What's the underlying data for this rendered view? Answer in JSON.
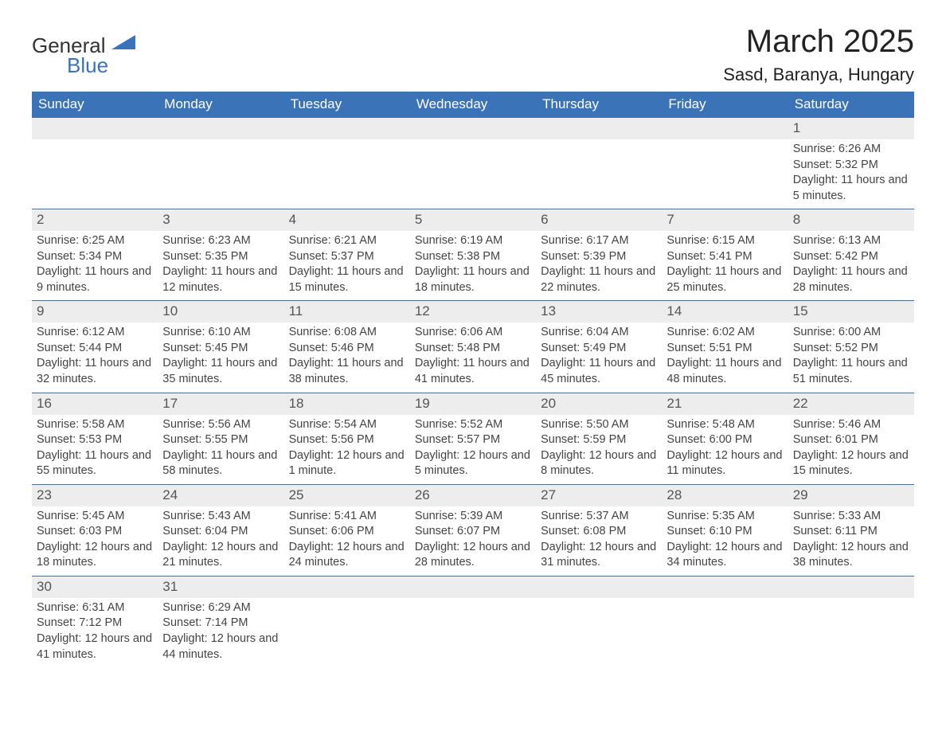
{
  "brand": {
    "text1": "General",
    "text2": "Blue",
    "color": "#3b73b9"
  },
  "title": "March 2025",
  "location": "Sasd, Baranya, Hungary",
  "weekdays": [
    "Sunday",
    "Monday",
    "Tuesday",
    "Wednesday",
    "Thursday",
    "Friday",
    "Saturday"
  ],
  "header_bg": "#3b73b9",
  "header_fg": "#ffffff",
  "band_bg": "#ededed",
  "row_border": "#3b73b9",
  "text_color": "#444444",
  "days": [
    {
      "n": 1,
      "col": 6,
      "sunrise": "6:26 AM",
      "sunset": "5:32 PM",
      "daylight": "11 hours and 5 minutes."
    },
    {
      "n": 2,
      "col": 0,
      "sunrise": "6:25 AM",
      "sunset": "5:34 PM",
      "daylight": "11 hours and 9 minutes."
    },
    {
      "n": 3,
      "col": 1,
      "sunrise": "6:23 AM",
      "sunset": "5:35 PM",
      "daylight": "11 hours and 12 minutes."
    },
    {
      "n": 4,
      "col": 2,
      "sunrise": "6:21 AM",
      "sunset": "5:37 PM",
      "daylight": "11 hours and 15 minutes."
    },
    {
      "n": 5,
      "col": 3,
      "sunrise": "6:19 AM",
      "sunset": "5:38 PM",
      "daylight": "11 hours and 18 minutes."
    },
    {
      "n": 6,
      "col": 4,
      "sunrise": "6:17 AM",
      "sunset": "5:39 PM",
      "daylight": "11 hours and 22 minutes."
    },
    {
      "n": 7,
      "col": 5,
      "sunrise": "6:15 AM",
      "sunset": "5:41 PM",
      "daylight": "11 hours and 25 minutes."
    },
    {
      "n": 8,
      "col": 6,
      "sunrise": "6:13 AM",
      "sunset": "5:42 PM",
      "daylight": "11 hours and 28 minutes."
    },
    {
      "n": 9,
      "col": 0,
      "sunrise": "6:12 AM",
      "sunset": "5:44 PM",
      "daylight": "11 hours and 32 minutes."
    },
    {
      "n": 10,
      "col": 1,
      "sunrise": "6:10 AM",
      "sunset": "5:45 PM",
      "daylight": "11 hours and 35 minutes."
    },
    {
      "n": 11,
      "col": 2,
      "sunrise": "6:08 AM",
      "sunset": "5:46 PM",
      "daylight": "11 hours and 38 minutes."
    },
    {
      "n": 12,
      "col": 3,
      "sunrise": "6:06 AM",
      "sunset": "5:48 PM",
      "daylight": "11 hours and 41 minutes."
    },
    {
      "n": 13,
      "col": 4,
      "sunrise": "6:04 AM",
      "sunset": "5:49 PM",
      "daylight": "11 hours and 45 minutes."
    },
    {
      "n": 14,
      "col": 5,
      "sunrise": "6:02 AM",
      "sunset": "5:51 PM",
      "daylight": "11 hours and 48 minutes."
    },
    {
      "n": 15,
      "col": 6,
      "sunrise": "6:00 AM",
      "sunset": "5:52 PM",
      "daylight": "11 hours and 51 minutes."
    },
    {
      "n": 16,
      "col": 0,
      "sunrise": "5:58 AM",
      "sunset": "5:53 PM",
      "daylight": "11 hours and 55 minutes."
    },
    {
      "n": 17,
      "col": 1,
      "sunrise": "5:56 AM",
      "sunset": "5:55 PM",
      "daylight": "11 hours and 58 minutes."
    },
    {
      "n": 18,
      "col": 2,
      "sunrise": "5:54 AM",
      "sunset": "5:56 PM",
      "daylight": "12 hours and 1 minute."
    },
    {
      "n": 19,
      "col": 3,
      "sunrise": "5:52 AM",
      "sunset": "5:57 PM",
      "daylight": "12 hours and 5 minutes."
    },
    {
      "n": 20,
      "col": 4,
      "sunrise": "5:50 AM",
      "sunset": "5:59 PM",
      "daylight": "12 hours and 8 minutes."
    },
    {
      "n": 21,
      "col": 5,
      "sunrise": "5:48 AM",
      "sunset": "6:00 PM",
      "daylight": "12 hours and 11 minutes."
    },
    {
      "n": 22,
      "col": 6,
      "sunrise": "5:46 AM",
      "sunset": "6:01 PM",
      "daylight": "12 hours and 15 minutes."
    },
    {
      "n": 23,
      "col": 0,
      "sunrise": "5:45 AM",
      "sunset": "6:03 PM",
      "daylight": "12 hours and 18 minutes."
    },
    {
      "n": 24,
      "col": 1,
      "sunrise": "5:43 AM",
      "sunset": "6:04 PM",
      "daylight": "12 hours and 21 minutes."
    },
    {
      "n": 25,
      "col": 2,
      "sunrise": "5:41 AM",
      "sunset": "6:06 PM",
      "daylight": "12 hours and 24 minutes."
    },
    {
      "n": 26,
      "col": 3,
      "sunrise": "5:39 AM",
      "sunset": "6:07 PM",
      "daylight": "12 hours and 28 minutes."
    },
    {
      "n": 27,
      "col": 4,
      "sunrise": "5:37 AM",
      "sunset": "6:08 PM",
      "daylight": "12 hours and 31 minutes."
    },
    {
      "n": 28,
      "col": 5,
      "sunrise": "5:35 AM",
      "sunset": "6:10 PM",
      "daylight": "12 hours and 34 minutes."
    },
    {
      "n": 29,
      "col": 6,
      "sunrise": "5:33 AM",
      "sunset": "6:11 PM",
      "daylight": "12 hours and 38 minutes."
    },
    {
      "n": 30,
      "col": 0,
      "sunrise": "6:31 AM",
      "sunset": "7:12 PM",
      "daylight": "12 hours and 41 minutes."
    },
    {
      "n": 31,
      "col": 1,
      "sunrise": "6:29 AM",
      "sunset": "7:14 PM",
      "daylight": "12 hours and 44 minutes."
    }
  ],
  "labels": {
    "sunrise": "Sunrise:",
    "sunset": "Sunset:",
    "daylight": "Daylight:"
  }
}
